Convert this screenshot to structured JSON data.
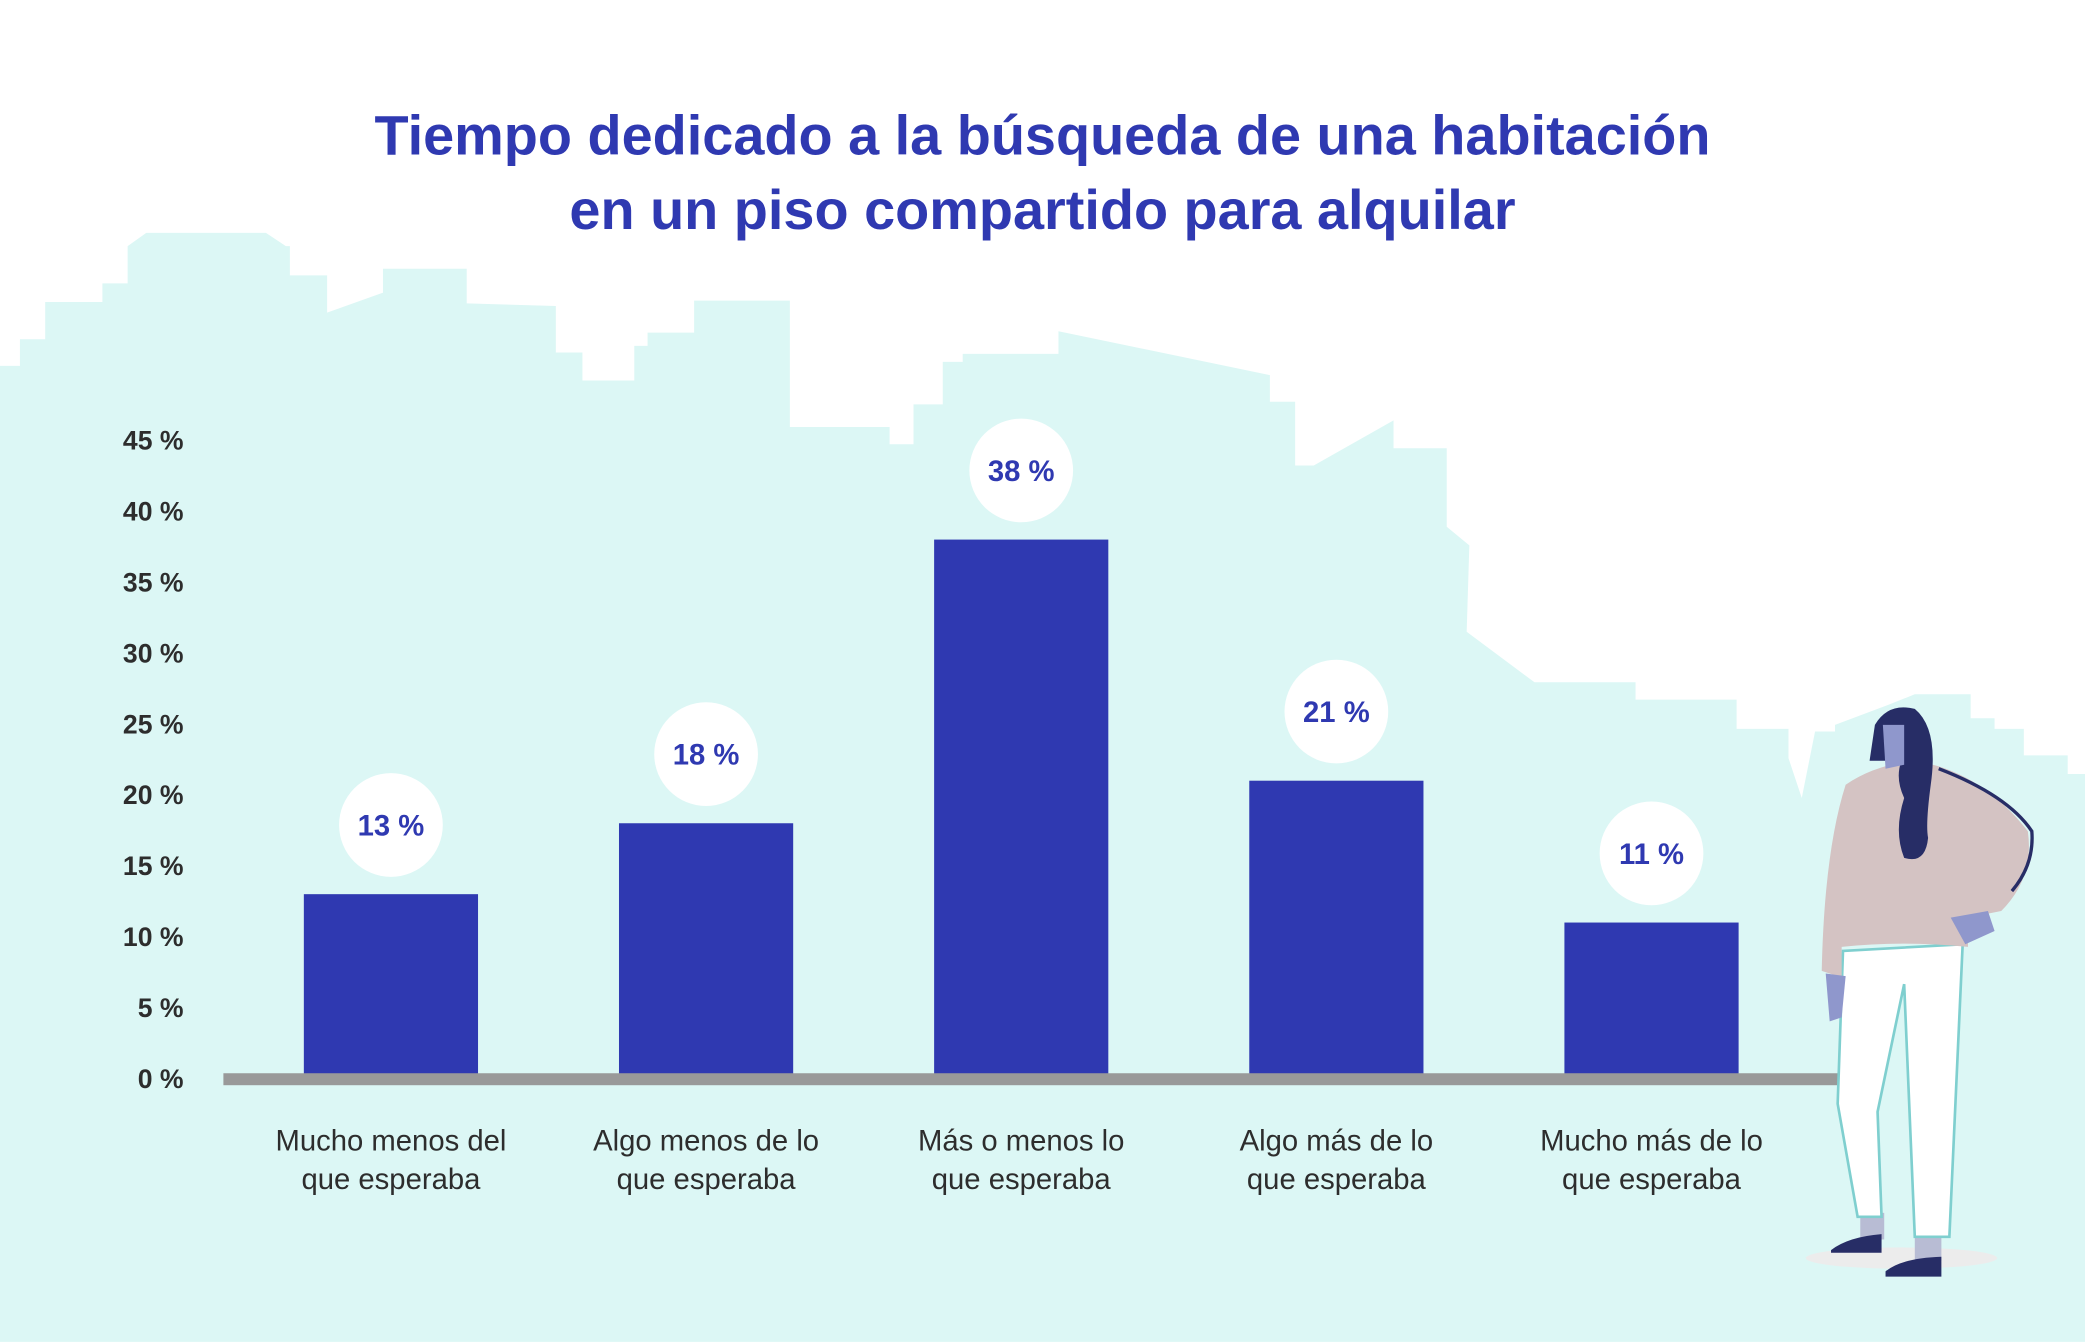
{
  "chart_data": {
    "type": "bar",
    "title_lines": [
      "Tiempo dedicado a la búsqueda de una habitación",
      "en un piso compartido para alquilar"
    ],
    "categories": [
      [
        "Mucho menos del",
        "que esperaba"
      ],
      [
        "Algo menos de lo",
        "que esperaba"
      ],
      [
        "Más o menos lo",
        "que esperaba"
      ],
      [
        "Algo más de lo",
        "que esperaba"
      ],
      [
        "Mucho más de lo",
        "que esperaba"
      ]
    ],
    "values": [
      13,
      18,
      38,
      21,
      11
    ],
    "data_labels": [
      "13 %",
      "18 %",
      "38 %",
      "21 %",
      "11 %"
    ],
    "y_ticks": [
      "0 %",
      "5 %",
      "10 %",
      "15 %",
      "20 %",
      "25 %",
      "30 %",
      "35 %",
      "40 %",
      "45 %"
    ],
    "ylim": [
      0,
      45
    ],
    "xlabel": "",
    "ylabel": "",
    "grid": false,
    "legend": "none"
  },
  "colors": {
    "bar": "#2f39b1",
    "title": "#2f39b1",
    "background_skyline": "#dcf7f5",
    "baseline": "#999999",
    "label_bubble": "#ffffff"
  }
}
